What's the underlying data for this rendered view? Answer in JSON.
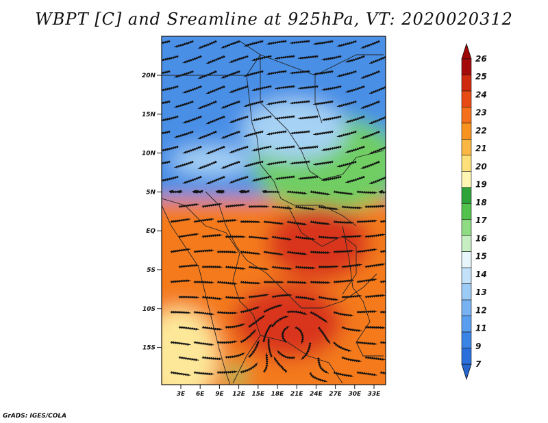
{
  "title": "WBPT [C] and Sreamline at 925hPa, VT: 2020020312",
  "footer": "GrADS: IGES/COLA",
  "lat_ticks": [
    "20N",
    "15N",
    "10N",
    "5N",
    "EQ",
    "5S",
    "10S",
    "15S"
  ],
  "lon_ticks": [
    "3E",
    "6E",
    "9E",
    "12E",
    "15E",
    "18E",
    "21E",
    "24E",
    "27E",
    "30E",
    "33E"
  ],
  "colorbar": {
    "labels": [
      "7",
      "9",
      "11",
      "12",
      "13",
      "14",
      "15",
      "16",
      "17",
      "18",
      "19",
      "20",
      "21",
      "22",
      "23",
      "24",
      "25",
      "26"
    ],
    "colors": [
      "#2a6fdb",
      "#3a84e6",
      "#5a9ef0",
      "#78b2f2",
      "#9ccbf6",
      "#c3e2fa",
      "#e6f6fb",
      "#c6eec2",
      "#8fdc84",
      "#52c24c",
      "#2ea33a",
      "#fff6b4",
      "#fde07a",
      "#fbb744",
      "#f99320",
      "#f4701a",
      "#e84a14",
      "#cf2a0e",
      "#a40a0a"
    ],
    "under_color": "#2566cf",
    "over_color": "#a00808"
  },
  "palette": {
    "cold": "#4a8fe6",
    "cool": "#a6d2f4",
    "green": "#6fce63",
    "warm": "#f47a1e",
    "hot": "#d9361a",
    "yellow": "#fde89a"
  }
}
